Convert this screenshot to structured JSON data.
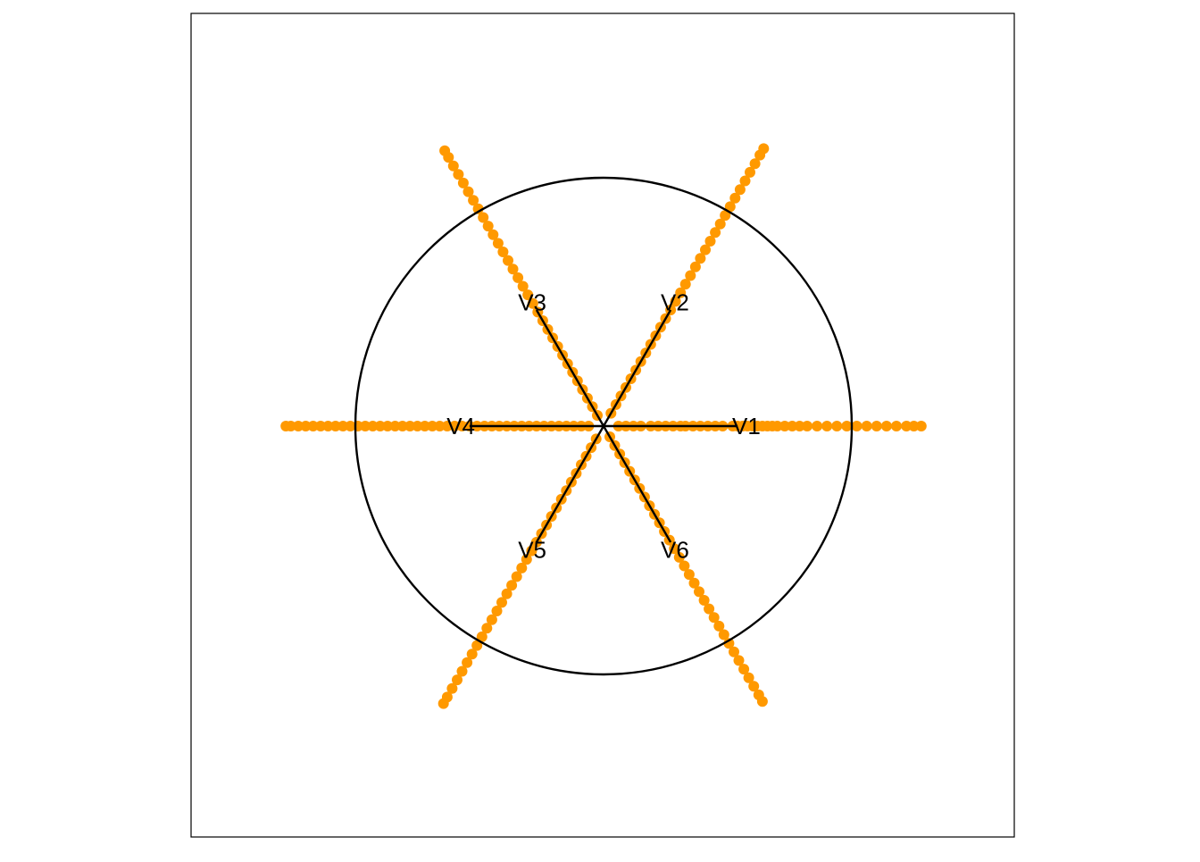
{
  "chart_data": {
    "type": "scatter",
    "title": "",
    "xlabel": "",
    "ylabel": "",
    "xlim": [
      -1.3,
      1.3
    ],
    "ylim": [
      -1.3,
      1.3
    ],
    "grid": false,
    "axes_visible": false,
    "unit_circle": {
      "radius": 1,
      "color": "#000000"
    },
    "point_color": "#FF9900",
    "axis_color": "#000000",
    "variables": [
      {
        "label": "V1",
        "angle_deg": 0,
        "arrow_length": 0.54
      },
      {
        "label": "V2",
        "angle_deg": 60,
        "arrow_length": 0.54
      },
      {
        "label": "V3",
        "angle_deg": 120,
        "arrow_length": 0.54
      },
      {
        "label": "V4",
        "angle_deg": 180,
        "arrow_length": 0.54
      },
      {
        "label": "V5",
        "angle_deg": 240,
        "arrow_length": 0.54
      },
      {
        "label": "V6",
        "angle_deg": 300,
        "arrow_length": 0.54
      }
    ],
    "series": [
      {
        "angle_deg": 0,
        "distances": [
          0.06,
          0.09,
          0.12,
          0.15,
          0.19,
          0.22,
          0.25,
          0.28,
          0.31,
          0.33,
          0.36,
          0.39,
          0.42,
          0.45,
          0.48,
          0.52,
          0.54,
          0.56,
          0.58,
          0.6,
          0.62,
          0.64,
          0.66,
          0.68,
          0.7,
          0.73,
          0.76,
          0.79,
          0.82,
          0.86,
          0.9,
          0.94,
          0.98,
          1.02,
          1.06,
          1.1,
          1.14,
          1.18,
          1.22,
          1.25,
          1.28
        ]
      },
      {
        "angle_deg": 180,
        "distances": [
          0.06,
          0.09,
          0.12,
          0.15,
          0.18,
          0.21,
          0.24,
          0.27,
          0.3,
          0.33,
          0.36,
          0.39,
          0.42,
          0.45,
          0.48,
          0.51,
          0.54,
          0.57,
          0.6,
          0.63,
          0.66,
          0.69,
          0.72,
          0.75,
          0.78,
          0.81,
          0.84,
          0.87,
          0.9,
          0.93,
          0.96,
          0.99,
          1.02,
          1.05,
          1.08,
          1.11,
          1.14,
          1.17,
          1.2,
          1.23,
          1.26,
          1.28
        ]
      },
      {
        "angle_deg": 60,
        "distances": [
          0.06,
          0.1,
          0.14,
          0.18,
          0.22,
          0.26,
          0.3,
          0.34,
          0.38,
          0.42,
          0.46,
          0.5,
          0.54,
          0.58,
          0.62,
          0.66,
          0.7,
          0.74,
          0.78,
          0.82,
          0.86,
          0.9,
          0.94,
          0.98,
          1.02,
          1.06,
          1.1,
          1.14,
          1.18,
          1.22,
          1.26,
          1.29
        ]
      },
      {
        "angle_deg": 120,
        "distances": [
          0.05,
          0.09,
          0.13,
          0.17,
          0.21,
          0.25,
          0.29,
          0.33,
          0.37,
          0.41,
          0.45,
          0.49,
          0.53,
          0.57,
          0.61,
          0.65,
          0.69,
          0.73,
          0.77,
          0.81,
          0.85,
          0.89,
          0.93,
          0.97,
          1.01,
          1.05,
          1.09,
          1.13,
          1.17,
          1.21,
          1.25,
          1.28
        ]
      },
      {
        "angle_deg": 240,
        "distances": [
          0.06,
          0.1,
          0.14,
          0.18,
          0.22,
          0.26,
          0.3,
          0.34,
          0.38,
          0.42,
          0.46,
          0.5,
          0.54,
          0.58,
          0.62,
          0.66,
          0.7,
          0.74,
          0.78,
          0.82,
          0.86,
          0.9,
          0.94,
          0.98,
          1.02,
          1.06,
          1.1,
          1.14,
          1.18,
          1.22,
          1.26,
          1.29
        ]
      },
      {
        "angle_deg": 300,
        "distances": [
          0.05,
          0.09,
          0.13,
          0.17,
          0.21,
          0.25,
          0.29,
          0.33,
          0.37,
          0.41,
          0.45,
          0.49,
          0.53,
          0.57,
          0.61,
          0.65,
          0.69,
          0.73,
          0.77,
          0.81,
          0.85,
          0.89,
          0.93,
          0.97,
          1.01,
          1.05,
          1.09,
          1.13,
          1.17,
          1.21,
          1.25,
          1.28
        ]
      }
    ]
  }
}
